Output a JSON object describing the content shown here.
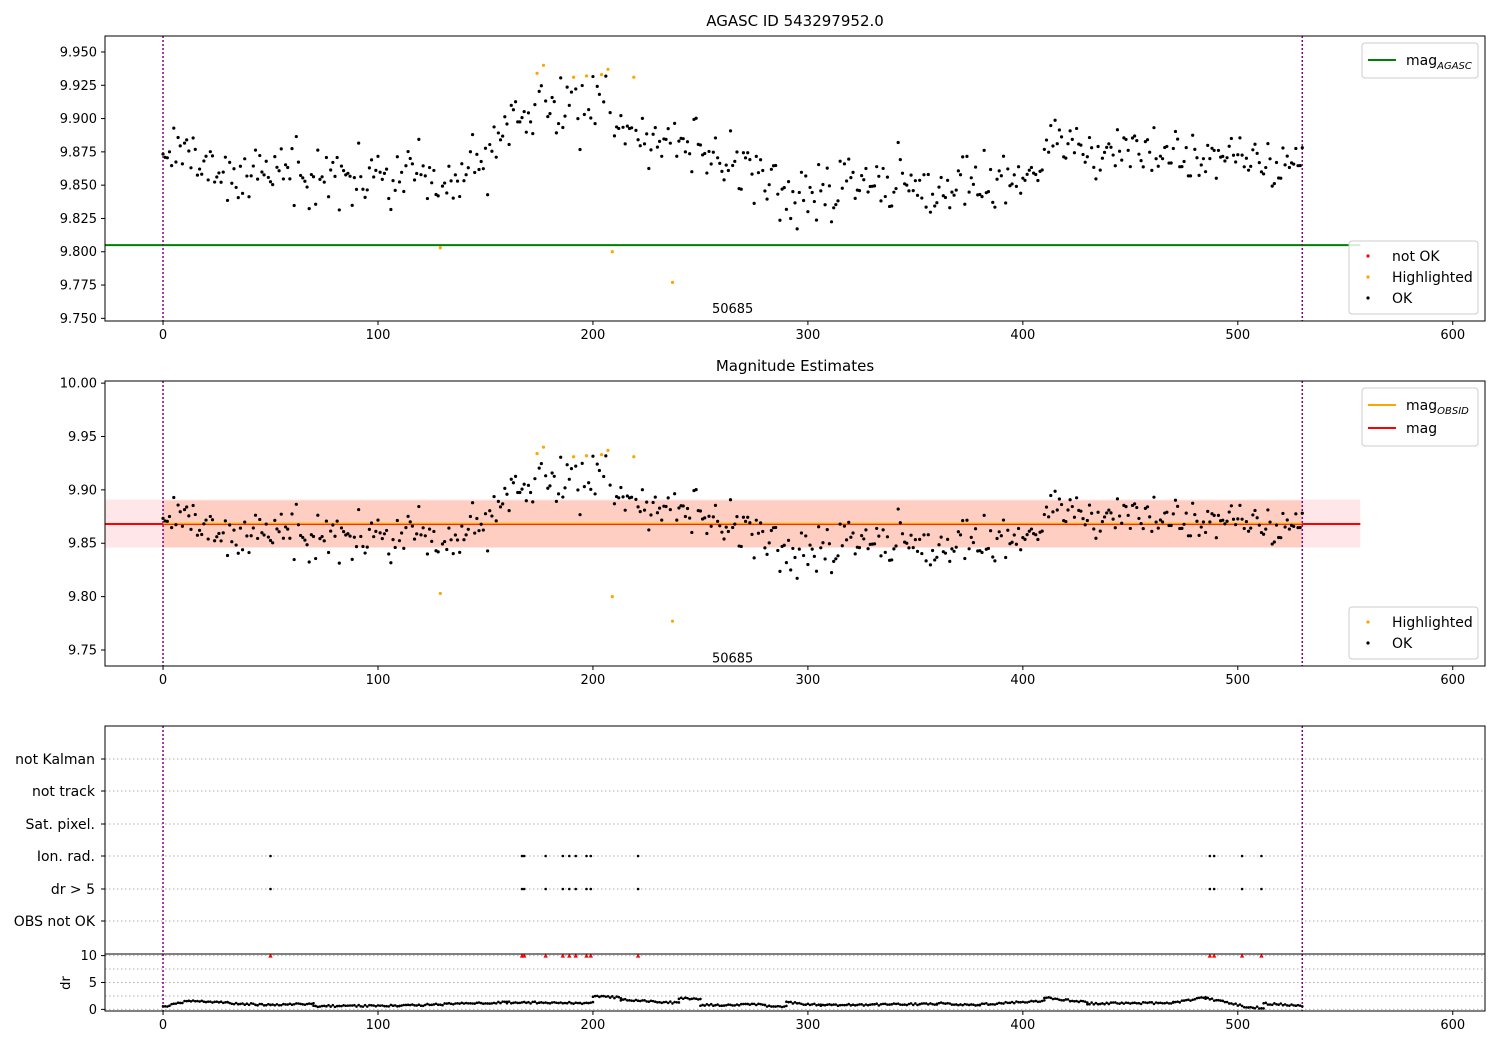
{
  "colors": {
    "ok": "#000000",
    "highlighted": "#ffa500",
    "not_ok": "#ff0000",
    "agasc_line": "#008000",
    "mag_line": "#ff0000",
    "obsid_line": "#ffa500",
    "vline": "#800080",
    "band_outer": "#ffb6c1",
    "band_inner": "#ffa07a"
  },
  "chart_data": [
    {
      "type": "scatter",
      "title": "AGASC ID 543297952.0",
      "xlim": [
        -27,
        615
      ],
      "ylim": [
        9.748,
        9.962
      ],
      "xticks": [
        0,
        100,
        200,
        300,
        400,
        500,
        600
      ],
      "yticks": [
        9.75,
        9.775,
        9.8,
        9.825,
        9.85,
        9.875,
        9.9,
        9.925,
        9.95
      ],
      "ytick_labels": [
        "9.750",
        "9.775",
        "9.800",
        "9.825",
        "9.850",
        "9.875",
        "9.900",
        "9.925",
        "9.950"
      ],
      "vlines": [
        0,
        530
      ],
      "hline": {
        "name": "mag_AGASC",
        "y": 9.805,
        "x": [
          -27,
          557
        ]
      },
      "obsid_text": {
        "text": "50685",
        "x": 265,
        "y": 9.757
      },
      "legend_lines": [
        {
          "name": "mag",
          "sub": "AGASC",
          "color": "#008000"
        }
      ],
      "legend_points": [
        {
          "name": "not OK",
          "color": "#ff0000"
        },
        {
          "name": "Highlighted",
          "color": "#ffa500"
        },
        {
          "name": "OK",
          "color": "#000000"
        }
      ],
      "series": [
        {
          "name": "Highlighted",
          "points": [
            [
              129,
              9.803
            ],
            [
              174,
              9.934
            ],
            [
              177,
              9.94
            ],
            [
              191,
              9.931
            ],
            [
              197,
              9.932
            ],
            [
              204,
              9.933
            ],
            [
              207,
              9.937
            ],
            [
              209,
              9.8
            ],
            [
              219,
              9.931
            ],
            [
              237,
              9.777
            ]
          ]
        },
        {
          "name": "OK",
          "model": "ok_shape"
        }
      ]
    },
    {
      "type": "scatter",
      "title": "Magnitude Estimates",
      "xlim": [
        -27,
        615
      ],
      "ylim": [
        9.735,
        10.002
      ],
      "xticks": [
        0,
        100,
        200,
        300,
        400,
        500,
        600
      ],
      "yticks": [
        9.75,
        9.8,
        9.85,
        9.9,
        9.95,
        10.0
      ],
      "ytick_labels": [
        "9.75",
        "9.80",
        "9.85",
        "9.90",
        "9.95",
        "10.00"
      ],
      "vlines": [
        0,
        530
      ],
      "mag": 9.868,
      "band_outer": [
        9.846,
        9.891
      ],
      "band_inner": [
        9.846,
        9.89
      ],
      "band_x": [
        -27,
        557
      ],
      "obsid_text": {
        "text": "50685",
        "x": 265,
        "y": 9.742
      },
      "legend_lines": [
        {
          "name": "mag",
          "sub": "OBSID",
          "color": "#ffa500"
        },
        {
          "name": "mag",
          "sub": "",
          "color": "#ff0000"
        }
      ],
      "legend_points": [
        {
          "name": "Highlighted",
          "color": "#ffa500"
        },
        {
          "name": "OK",
          "color": "#000000"
        }
      ],
      "series": [
        {
          "name": "Highlighted",
          "points": [
            [
              129,
              9.803
            ],
            [
              174,
              9.934
            ],
            [
              177,
              9.94
            ],
            [
              191,
              9.931
            ],
            [
              197,
              9.932
            ],
            [
              204,
              9.933
            ],
            [
              207,
              9.937
            ],
            [
              209,
              9.8
            ],
            [
              219,
              9.931
            ],
            [
              237,
              9.777
            ]
          ]
        },
        {
          "name": "OK",
          "model": "ok_shape"
        }
      ]
    },
    {
      "type": "scatter",
      "title": "",
      "xlim": [
        -27,
        615
      ],
      "xticks": [
        0,
        100,
        200,
        300,
        400,
        500,
        600
      ],
      "vlines": [
        0,
        530
      ],
      "flag_labels": [
        "not Kalman",
        "not track",
        "Sat. pixel.",
        "Ion. rad.",
        "dr > 5",
        "OBS not OK"
      ],
      "flag_points": {
        "Ion. rad.": [
          50,
          167,
          168,
          178,
          186,
          189,
          192,
          197,
          199,
          221,
          487,
          489,
          502,
          511
        ],
        "dr > 5": [
          50,
          167,
          168,
          178,
          186,
          189,
          192,
          197,
          199,
          221,
          487,
          489,
          502,
          511
        ]
      },
      "dr_ylabel": "dr",
      "dr_ylim": [
        -0.3,
        10.3
      ],
      "dr_yticks": [
        0,
        5,
        10
      ],
      "dr_clipped_x": [
        50,
        167,
        168,
        178,
        186,
        189,
        192,
        197,
        199,
        221,
        487,
        489,
        502,
        511
      ],
      "dr_series": {
        "name": "dr",
        "segments": [
          [
            0,
            0.5,
            12,
            1.6
          ],
          [
            12,
            1.6,
            30,
            1.2
          ],
          [
            30,
            1.2,
            50,
            0.8
          ],
          [
            50,
            0.8,
            70,
            1.1
          ],
          [
            70,
            0.6,
            110,
            0.7
          ],
          [
            110,
            0.7,
            160,
            1.3
          ],
          [
            160,
            1.3,
            200,
            1.2
          ],
          [
            200,
            2.4,
            213,
            2.2
          ],
          [
            213,
            1.8,
            240,
            1.2
          ],
          [
            240,
            2.1,
            250,
            2.0
          ],
          [
            250,
            0.8,
            280,
            0.9
          ],
          [
            280,
            0.7,
            290,
            0.5
          ],
          [
            290,
            1.3,
            306,
            0.8
          ],
          [
            306,
            0.8,
            360,
            1.0
          ],
          [
            360,
            1.2,
            380,
            0.7
          ],
          [
            380,
            0.9,
            410,
            1.6
          ],
          [
            410,
            2.2,
            430,
            1.3
          ],
          [
            430,
            1.1,
            470,
            1.2
          ],
          [
            470,
            1.3,
            485,
            2.2
          ],
          [
            485,
            2.1,
            505,
            0.4
          ],
          [
            505,
            0.4,
            512,
            0.3
          ],
          [
            512,
            1.1,
            530,
            0.7
          ]
        ]
      }
    }
  ]
}
